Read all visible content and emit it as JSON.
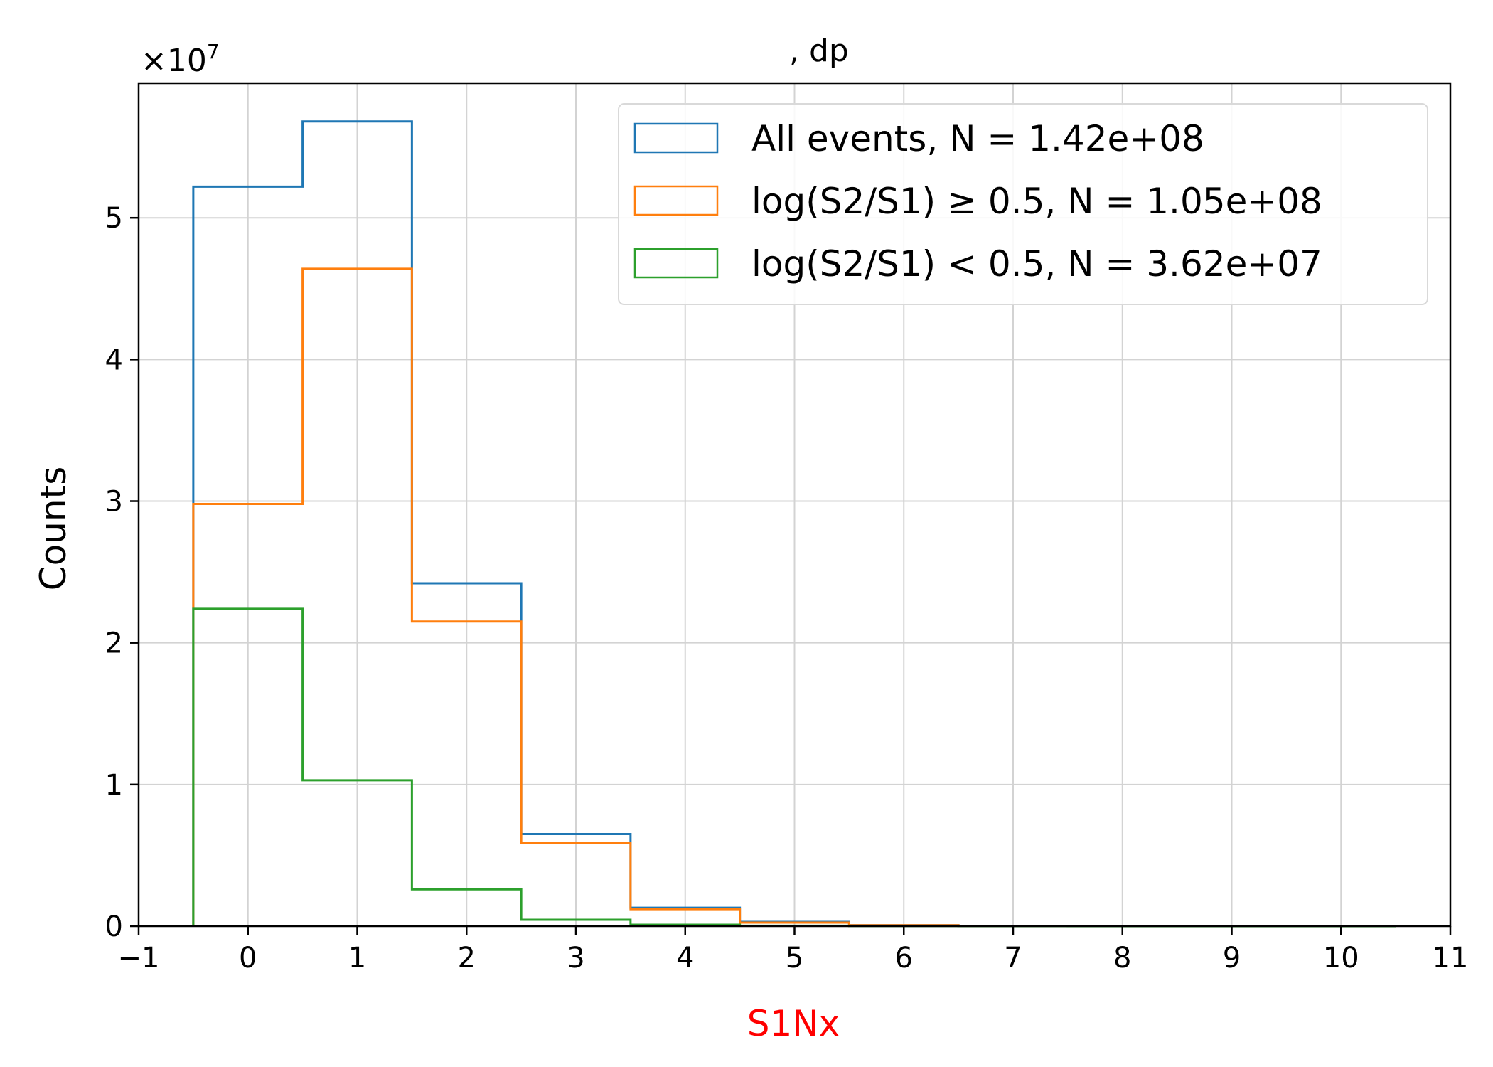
{
  "chart_data": {
    "type": "histogram",
    "title": ", dp",
    "xlabel": "S1Nx",
    "xlabel_color": "#ff0000",
    "ylabel": "Counts",
    "y_offset_label": "×10",
    "y_offset_exponent": "7",
    "xlim": [
      -1,
      11
    ],
    "ylim": [
      0,
      5.95
    ],
    "x_ticks": [
      -1,
      0,
      1,
      2,
      3,
      4,
      5,
      6,
      7,
      8,
      9,
      10,
      11
    ],
    "x_tick_labels": [
      "−1",
      "0",
      "1",
      "2",
      "3",
      "4",
      "5",
      "6",
      "7",
      "8",
      "9",
      "10",
      "11"
    ],
    "y_ticks": [
      0,
      1,
      2,
      3,
      4,
      5
    ],
    "y_tick_labels": [
      "0",
      "1",
      "2",
      "3",
      "4",
      "5"
    ],
    "grid": true,
    "legend_position": "top-right",
    "bin_edges": [
      -0.5,
      0.5,
      1.5,
      2.5,
      3.5,
      4.5,
      5.5,
      6.5,
      7.5,
      8.5,
      9.5,
      10.5
    ],
    "series": [
      {
        "name": "All events, N = 1.42e+08",
        "color": "#1f77b4",
        "values": [
          5.22,
          5.68,
          2.42,
          0.65,
          0.13,
          0.03,
          0.007,
          0.002,
          0.001,
          0.0005,
          0.0003
        ]
      },
      {
        "name": "log(S2/S1) ≥ 0.5, N = 1.05e+08",
        "color": "#ff7f0e",
        "values": [
          2.98,
          4.64,
          2.15,
          0.59,
          0.12,
          0.025,
          0.006,
          0.002,
          0.001,
          0.0005,
          0.0003
        ]
      },
      {
        "name": "log(S2/S1) < 0.5, N = 3.62e+07",
        "color": "#2ca02c",
        "values": [
          2.24,
          1.03,
          0.26,
          0.045,
          0.01,
          0.003,
          0.001,
          0.0005,
          0.0002,
          0.0001,
          0.0001
        ]
      }
    ]
  }
}
